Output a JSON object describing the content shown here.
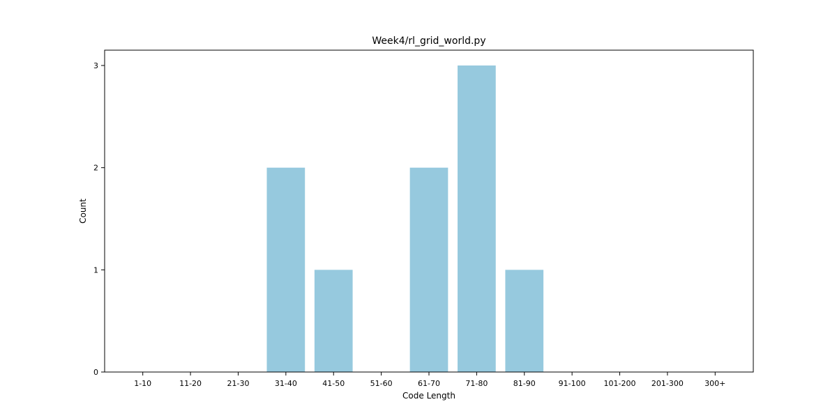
{
  "chart_data": {
    "type": "bar",
    "title": "Week4/rl_grid_world.py",
    "xlabel": "Code Length",
    "ylabel": "Count",
    "categories": [
      "1-10",
      "11-20",
      "21-30",
      "31-40",
      "41-50",
      "51-60",
      "61-70",
      "71-80",
      "81-90",
      "91-100",
      "101-200",
      "201-300",
      "300+"
    ],
    "values": [
      0,
      0,
      0,
      2,
      1,
      0,
      2,
      3,
      1,
      0,
      0,
      0,
      0
    ],
    "ylim": [
      0,
      3.15
    ],
    "yticks": [
      0,
      1,
      2,
      3
    ],
    "grid": false,
    "bar_color": "#96c9de"
  }
}
